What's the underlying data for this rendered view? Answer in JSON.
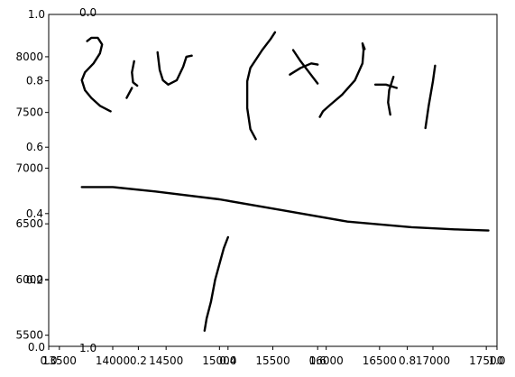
{
  "figure": {
    "overlay_axes_labels": {
      "top_left_y": "1.0",
      "top_partial": "0.0",
      "bottom_left_y": "0.0",
      "bottom_left_x": "1.0"
    }
  },
  "axes_primary": {
    "x_tick_labels": [
      "13500",
      "14000",
      "14500",
      "15000",
      "15500",
      "16000",
      "16500",
      "17000",
      "17500"
    ],
    "y_tick_labels": [
      "5500",
      "6000",
      "6500",
      "7000",
      "7500",
      "8000"
    ],
    "xlim": [
      13400,
      17600
    ],
    "ylim": [
      5400,
      8380
    ]
  },
  "axes_overlay": {
    "x_tick_labels": [
      "0.0",
      "0.2",
      "0.4",
      "0.6",
      "0.8",
      "1.0"
    ],
    "y_tick_labels": [
      "0.0",
      "0.2",
      "0.4",
      "0.6",
      "0.8",
      "1.0"
    ]
  },
  "colors": {
    "ink": "#000000",
    "background": "#ffffff",
    "spine": "#000000"
  },
  "handwriting": {
    "description_free": true,
    "strokes": [
      {
        "name": "stroke-2",
        "points": [
          [
            13760,
            8140
          ],
          [
            13800,
            8170
          ],
          [
            13860,
            8170
          ],
          [
            13900,
            8110
          ],
          [
            13880,
            8030
          ],
          [
            13820,
            7940
          ],
          [
            13740,
            7860
          ],
          [
            13710,
            7790
          ],
          [
            13740,
            7700
          ],
          [
            13800,
            7630
          ],
          [
            13880,
            7560
          ],
          [
            13980,
            7510
          ]
        ]
      },
      {
        "name": "stroke-comma",
        "points": [
          [
            14180,
            7720
          ],
          [
            14130,
            7630
          ]
        ]
      },
      {
        "name": "stroke-u-left",
        "points": [
          [
            14200,
            7960
          ],
          [
            14180,
            7860
          ],
          [
            14190,
            7770
          ],
          [
            14230,
            7740
          ]
        ]
      },
      {
        "name": "stroke-u-right",
        "points": [
          [
            14420,
            8040
          ],
          [
            14440,
            7880
          ],
          [
            14470,
            7790
          ],
          [
            14520,
            7750
          ],
          [
            14600,
            7790
          ],
          [
            14660,
            7910
          ],
          [
            14690,
            8000
          ],
          [
            14740,
            8010
          ]
        ]
      },
      {
        "name": "stroke-open-paren",
        "points": [
          [
            15520,
            8220
          ],
          [
            15480,
            8160
          ],
          [
            15400,
            8060
          ],
          [
            15290,
            7900
          ],
          [
            15260,
            7780
          ],
          [
            15260,
            7540
          ],
          [
            15290,
            7350
          ],
          [
            15340,
            7260
          ]
        ]
      },
      {
        "name": "stroke-x-diag1",
        "points": [
          [
            15690,
            8060
          ],
          [
            15760,
            7960
          ],
          [
            15840,
            7860
          ],
          [
            15920,
            7760
          ]
        ]
      },
      {
        "name": "stroke-x-diag2",
        "points": [
          [
            15660,
            7840
          ],
          [
            15760,
            7900
          ],
          [
            15860,
            7940
          ],
          [
            15920,
            7930
          ]
        ]
      },
      {
        "name": "stroke-close-paren",
        "points": [
          [
            16360,
            8070
          ],
          [
            16340,
            8120
          ],
          [
            16350,
            8060
          ],
          [
            16340,
            7940
          ],
          [
            16270,
            7790
          ],
          [
            16150,
            7660
          ],
          [
            16040,
            7570
          ],
          [
            15970,
            7510
          ],
          [
            15940,
            7460
          ]
        ]
      },
      {
        "name": "stroke-plus-h",
        "points": [
          [
            16460,
            7750
          ],
          [
            16560,
            7750
          ],
          [
            16660,
            7720
          ]
        ]
      },
      {
        "name": "stroke-plus-v",
        "points": [
          [
            16630,
            7820
          ],
          [
            16590,
            7700
          ],
          [
            16580,
            7590
          ],
          [
            16600,
            7480
          ]
        ]
      },
      {
        "name": "stroke-one",
        "points": [
          [
            17020,
            7920
          ],
          [
            17000,
            7780
          ],
          [
            16960,
            7560
          ],
          [
            16930,
            7360
          ]
        ]
      },
      {
        "name": "stroke-fraction-bar",
        "points": [
          [
            13710,
            6830
          ],
          [
            13800,
            6830
          ],
          [
            14000,
            6830
          ],
          [
            14400,
            6790
          ],
          [
            15000,
            6720
          ],
          [
            15600,
            6620
          ],
          [
            16200,
            6520
          ],
          [
            16800,
            6470
          ],
          [
            17200,
            6450
          ],
          [
            17520,
            6440
          ]
        ]
      },
      {
        "name": "stroke-denominator",
        "points": [
          [
            15080,
            6380
          ],
          [
            15040,
            6280
          ],
          [
            14960,
            6000
          ],
          [
            14920,
            5800
          ],
          [
            14880,
            5650
          ],
          [
            14860,
            5540
          ]
        ]
      }
    ]
  }
}
